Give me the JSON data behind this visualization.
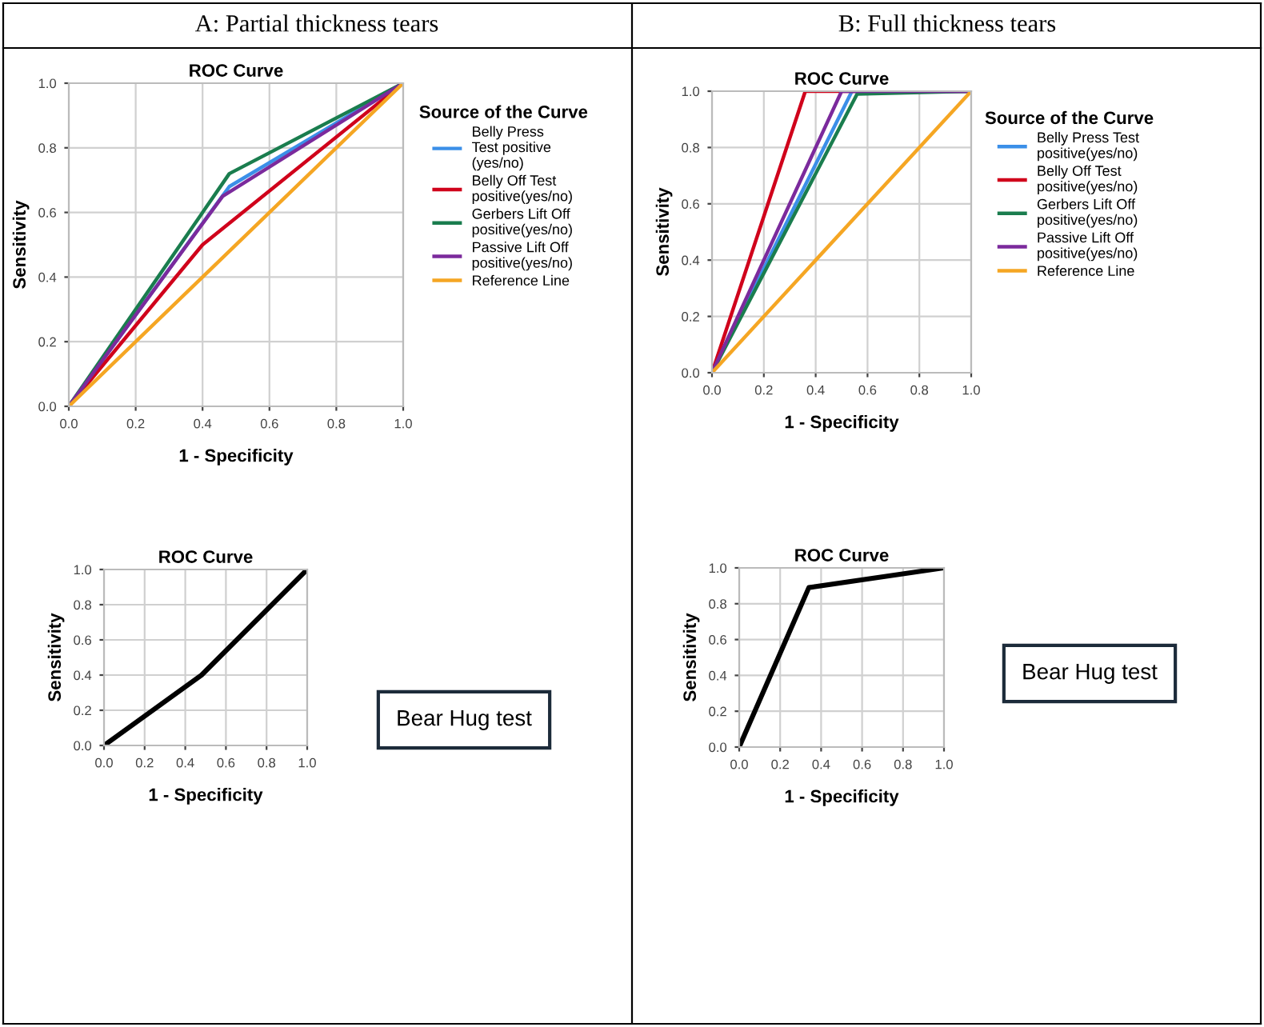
{
  "chart_data": [
    {
      "type": "line",
      "subtitle": "A: Partial thickness tears",
      "title": "ROC Curve",
      "xlabel": "1 - Specificity",
      "ylabel": "Sensitivity",
      "legend_title": "Source of the Curve",
      "legend": "right",
      "grid": true,
      "marker": "none",
      "line_style": "solid",
      "xlim": [
        0,
        1
      ],
      "ylim": [
        0,
        1
      ],
      "xticks": [
        {
          "value": 0,
          "label": "0.0"
        },
        {
          "value": 0.2,
          "label": "0.2"
        },
        {
          "value": 0.4,
          "label": "0.4"
        },
        {
          "value": 0.6,
          "label": "0.6"
        },
        {
          "value": 0.8,
          "label": "0.8"
        },
        {
          "value": 1,
          "label": "1.0"
        }
      ],
      "yticks": [
        {
          "value": 0,
          "label": "0.0"
        },
        {
          "value": 0.2,
          "label": "0.2"
        },
        {
          "value": 0.4,
          "label": "0.4"
        },
        {
          "value": 0.6,
          "label": "0.6"
        },
        {
          "value": 0.8,
          "label": "0.8"
        },
        {
          "value": 1,
          "label": "1.0"
        }
      ],
      "series": [
        {
          "name": "Belly Press\nTest positive\n(yes/no)",
          "color": "#3b8fe8",
          "x": [
            0,
            0.48,
            1
          ],
          "values": [
            0,
            0.68,
            1
          ]
        },
        {
          "name": "Belly Off Test\npositive(yes/no)",
          "color": "#d0021b",
          "x": [
            0,
            0.4,
            1
          ],
          "values": [
            0,
            0.5,
            1
          ]
        },
        {
          "name": "Gerbers Lift Off\npositive(yes/no)",
          "color": "#1a7d4e",
          "x": [
            0,
            0.48,
            1
          ],
          "values": [
            0,
            0.72,
            1
          ]
        },
        {
          "name": "Passive Lift Off\npositive(yes/no)",
          "color": "#7b2a9c",
          "x": [
            0,
            0.46,
            1
          ],
          "values": [
            0,
            0.65,
            1
          ]
        },
        {
          "name": "Reference Line",
          "color": "#f5a623",
          "x": [
            0,
            1
          ],
          "values": [
            0,
            1
          ]
        }
      ]
    },
    {
      "type": "line",
      "subtitle": "B: Full thickness tears",
      "title": "ROC Curve",
      "xlabel": "1 - Specificity",
      "ylabel": "Sensitivity",
      "legend_title": "Source of the Curve",
      "legend": "right",
      "grid": true,
      "marker": "none",
      "line_style": "solid",
      "xlim": [
        0,
        1
      ],
      "ylim": [
        0,
        1
      ],
      "xticks": [
        {
          "value": 0,
          "label": "0.0"
        },
        {
          "value": 0.2,
          "label": "0.2"
        },
        {
          "value": 0.4,
          "label": "0.4"
        },
        {
          "value": 0.6,
          "label": "0.6"
        },
        {
          "value": 0.8,
          "label": "0.8"
        },
        {
          "value": 1,
          "label": "1.0"
        }
      ],
      "yticks": [
        {
          "value": 0,
          "label": "0.0"
        },
        {
          "value": 0.2,
          "label": "0.2"
        },
        {
          "value": 0.4,
          "label": "0.4"
        },
        {
          "value": 0.6,
          "label": "0.6"
        },
        {
          "value": 0.8,
          "label": "0.8"
        },
        {
          "value": 1,
          "label": "1.0"
        }
      ],
      "series": [
        {
          "name": "Belly Press Test\npositive(yes/no)",
          "color": "#3b8fe8",
          "x": [
            0,
            0.54,
            1
          ],
          "values": [
            0,
            1,
            1
          ]
        },
        {
          "name": "Belly Off Test\npositive(yes/no)",
          "color": "#d0021b",
          "x": [
            0,
            0.36,
            1
          ],
          "values": [
            0,
            1,
            1
          ]
        },
        {
          "name": "Gerbers Lift Off\npositive(yes/no)",
          "color": "#1a7d4e",
          "x": [
            0,
            0.56,
            1
          ],
          "values": [
            0,
            0.99,
            1
          ]
        },
        {
          "name": "Passive Lift Off\npositive(yes/no)",
          "color": "#7b2a9c",
          "x": [
            0,
            0.5,
            1
          ],
          "values": [
            0,
            1,
            1
          ]
        },
        {
          "name": "Reference Line",
          "color": "#f5a623",
          "x": [
            0,
            1
          ],
          "values": [
            0,
            1
          ]
        }
      ]
    },
    {
      "type": "line",
      "title": "ROC Curve",
      "xlabel": "1 - Specificity",
      "ylabel": "Sensitivity",
      "annotations": [
        "Bear Hug test"
      ],
      "grid": true,
      "marker": "none",
      "line_style": "solid",
      "xlim": [
        0,
        1
      ],
      "ylim": [
        0,
        1
      ],
      "xticks": [
        {
          "value": 0,
          "label": "0.0"
        },
        {
          "value": 0.2,
          "label": "0.2"
        },
        {
          "value": 0.4,
          "label": "0.4"
        },
        {
          "value": 0.6,
          "label": "0.6"
        },
        {
          "value": 0.8,
          "label": "0.8"
        },
        {
          "value": 1,
          "label": "1.0"
        }
      ],
      "yticks": [
        {
          "value": 0,
          "label": "0.0"
        },
        {
          "value": 0.2,
          "label": "0.2"
        },
        {
          "value": 0.4,
          "label": "0.4"
        },
        {
          "value": 0.6,
          "label": "0.6"
        },
        {
          "value": 0.8,
          "label": "0.8"
        },
        {
          "value": 1,
          "label": "1.0"
        }
      ],
      "series": [
        {
          "color": "#000000",
          "x": [
            0,
            0.48,
            1
          ],
          "values": [
            0,
            0.4,
            1
          ]
        }
      ]
    },
    {
      "type": "line",
      "title": "ROC Curve",
      "xlabel": "1 - Specificity",
      "ylabel": "Sensitivity",
      "annotations": [
        "Bear Hug test"
      ],
      "grid": true,
      "marker": "none",
      "line_style": "solid",
      "xlim": [
        0,
        1
      ],
      "ylim": [
        0,
        1
      ],
      "xticks": [
        {
          "value": 0,
          "label": "0.0"
        },
        {
          "value": 0.2,
          "label": "0.2"
        },
        {
          "value": 0.4,
          "label": "0.4"
        },
        {
          "value": 0.6,
          "label": "0.6"
        },
        {
          "value": 0.8,
          "label": "0.8"
        },
        {
          "value": 1,
          "label": "1.0"
        }
      ],
      "yticks": [
        {
          "value": 0,
          "label": "0.0"
        },
        {
          "value": 0.2,
          "label": "0.2"
        },
        {
          "value": 0.4,
          "label": "0.4"
        },
        {
          "value": 0.6,
          "label": "0.6"
        },
        {
          "value": 0.8,
          "label": "0.8"
        },
        {
          "value": 1,
          "label": "1.0"
        }
      ],
      "series": [
        {
          "color": "#000000",
          "x": [
            0,
            0.34,
            1
          ],
          "values": [
            0,
            0.89,
            1
          ]
        }
      ]
    }
  ]
}
